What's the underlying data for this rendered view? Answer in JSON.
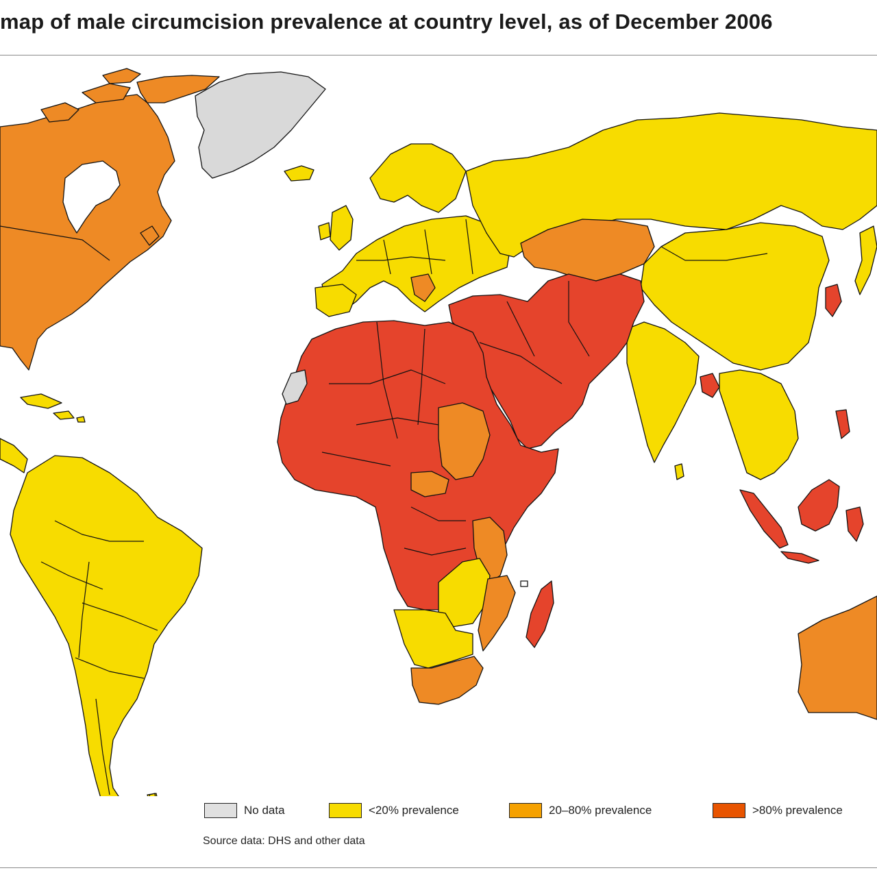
{
  "title": "map of male circumcision prevalence at country level, as of December 2006",
  "colors": {
    "no_data": "#d9d9d9",
    "low": "#f7dc00",
    "mid": "#ee8a25",
    "high": "#e5442c",
    "ocean": "#ffffff"
  },
  "legend": {
    "items": [
      {
        "label": "No data",
        "color": "#e0e0e0",
        "category": "no_data"
      },
      {
        "label": "<20% prevalence",
        "color": "#f7dc00",
        "category": "low"
      },
      {
        "label": "20–80% prevalence",
        "color": "#f5a100",
        "category": "mid"
      },
      {
        "label": ">80% prevalence",
        "color": "#e85400",
        "category": "high"
      }
    ]
  },
  "source": "Source data: DHS and other data"
}
